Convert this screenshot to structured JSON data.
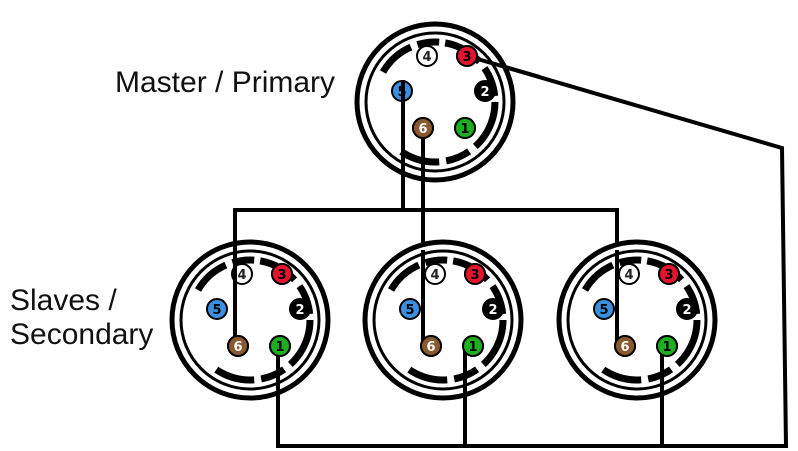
{
  "labels": {
    "master": "Master / Primary",
    "slaves_line1": "Slaves /",
    "slaves_line2": "Secondary"
  },
  "pins": [
    {
      "id": "1",
      "color": "#1fae1f",
      "text_color": "#000000"
    },
    {
      "id": "2",
      "color": "#000000",
      "text_color": "#ffffff"
    },
    {
      "id": "3",
      "color": "#e3142d",
      "text_color": "#000000"
    },
    {
      "id": "4",
      "color": "#ffffff",
      "text_color": "#222222"
    },
    {
      "id": "5",
      "color": "#3a8fe0",
      "text_color": "#000000"
    },
    {
      "id": "6",
      "color": "#8a5a2e",
      "text_color": "#ffffff"
    }
  ],
  "connectors": [
    {
      "role": "master"
    },
    {
      "role": "slave"
    },
    {
      "role": "slave"
    },
    {
      "role": "slave"
    }
  ],
  "colors": {
    "wire": "#000000",
    "connector_outline": "#000000"
  }
}
